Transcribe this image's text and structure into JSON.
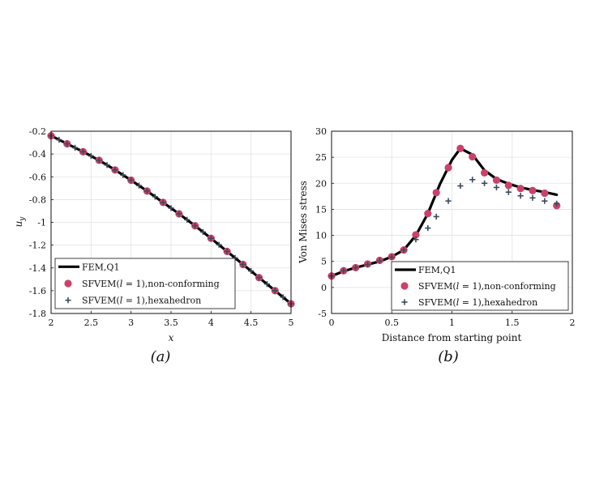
{
  "chart_data": [
    {
      "type": "line",
      "panel_label": "(a)",
      "xlabel": "x",
      "ylabel": "u",
      "ylabel_sub": "y",
      "xlim": [
        2,
        5
      ],
      "ylim": [
        -1.8,
        -0.2
      ],
      "xticks": [
        "2",
        "2.5",
        "3",
        "3.5",
        "4",
        "4.5",
        "5"
      ],
      "yticks": [
        "-0.2",
        "-0.4",
        "-0.6",
        "-0.8",
        "-1",
        "-1.2",
        "-1.4",
        "-1.6",
        "-1.8"
      ],
      "legend_position": "bottom-left",
      "series": [
        {
          "name": "FEM,Q1",
          "style": "line",
          "color": "#000000",
          "x": [
            2.0,
            2.2,
            2.4,
            2.6,
            2.8,
            3.0,
            3.2,
            3.4,
            3.6,
            3.8,
            4.0,
            4.2,
            4.4,
            4.6,
            4.8,
            5.0
          ],
          "y": [
            -0.24,
            -0.31,
            -0.38,
            -0.455,
            -0.54,
            -0.63,
            -0.725,
            -0.825,
            -0.925,
            -1.03,
            -1.14,
            -1.255,
            -1.37,
            -1.485,
            -1.6,
            -1.715
          ]
        },
        {
          "name": "SFVEM(l = 1),non-conforming",
          "name_parts": [
            "SFVEM(",
            "l",
            " = 1),non-conforming"
          ],
          "style": "circle",
          "color": "#c9426a",
          "x": [
            2.0,
            2.2,
            2.4,
            2.6,
            2.8,
            3.0,
            3.2,
            3.4,
            3.6,
            3.8,
            4.0,
            4.2,
            4.4,
            4.6,
            4.8,
            5.0
          ],
          "y": [
            -0.24,
            -0.31,
            -0.38,
            -0.455,
            -0.54,
            -0.63,
            -0.725,
            -0.825,
            -0.925,
            -1.03,
            -1.14,
            -1.255,
            -1.37,
            -1.485,
            -1.6,
            -1.715
          ]
        },
        {
          "name": "SFVEM(l = 1),hexahedron",
          "name_parts": [
            "SFVEM(",
            "l",
            " = 1),hexahedron"
          ],
          "style": "plus",
          "color": "#3d4a5c",
          "x": [
            2.0,
            2.1,
            2.2,
            2.3,
            2.4,
            2.5,
            2.6,
            2.7,
            2.8,
            2.9,
            3.0,
            3.1,
            3.2,
            3.3,
            3.4,
            3.5,
            3.6,
            3.7,
            3.8,
            3.9,
            4.0,
            4.1,
            4.2,
            4.3,
            4.4,
            4.5,
            4.6,
            4.7,
            4.8,
            4.9,
            5.0
          ],
          "y": [
            -0.24,
            -0.275,
            -0.31,
            -0.345,
            -0.38,
            -0.417,
            -0.455,
            -0.497,
            -0.54,
            -0.585,
            -0.63,
            -0.677,
            -0.725,
            -0.775,
            -0.825,
            -0.875,
            -0.925,
            -0.977,
            -1.03,
            -1.085,
            -1.14,
            -1.197,
            -1.255,
            -1.312,
            -1.37,
            -1.427,
            -1.485,
            -1.542,
            -1.6,
            -1.657,
            -1.715
          ]
        }
      ]
    },
    {
      "type": "line",
      "panel_label": "(b)",
      "xlabel": "Distance from starting point",
      "ylabel": "Von Mises stress",
      "xlim": [
        0,
        2
      ],
      "ylim": [
        -5,
        30
      ],
      "xticks": [
        "0",
        "0.5",
        "1",
        "1.5",
        "2"
      ],
      "yticks": [
        "30",
        "25",
        "20",
        "15",
        "10",
        "5",
        "0",
        "-5"
      ],
      "legend_position": "bottom-right",
      "series": [
        {
          "name": "FEM,Q1",
          "style": "line",
          "color": "#000000",
          "x": [
            0.0,
            0.1,
            0.2,
            0.3,
            0.4,
            0.5,
            0.6,
            0.7,
            0.8,
            0.9,
            1.0,
            1.07,
            1.17,
            1.27,
            1.37,
            1.47,
            1.57,
            1.67,
            1.77,
            1.87
          ],
          "y": [
            2.2,
            3.1,
            3.8,
            4.4,
            5.0,
            5.9,
            7.2,
            10.0,
            14.2,
            19.8,
            24.5,
            26.7,
            25.5,
            22.5,
            20.8,
            19.9,
            19.2,
            18.7,
            18.3,
            17.8
          ]
        },
        {
          "name": "SFVEM(l = 1),non-conforming",
          "name_parts": [
            "SFVEM(",
            "l",
            " = 1),non-conforming"
          ],
          "style": "circle",
          "color": "#c9426a",
          "x": [
            0.0,
            0.1,
            0.2,
            0.3,
            0.4,
            0.5,
            0.6,
            0.7,
            0.8,
            0.87,
            0.97,
            1.07,
            1.17,
            1.27,
            1.37,
            1.47,
            1.57,
            1.67,
            1.77,
            1.87
          ],
          "y": [
            2.2,
            3.2,
            3.8,
            4.5,
            5.2,
            5.9,
            7.2,
            10.1,
            14.2,
            18.2,
            23.0,
            26.7,
            25.1,
            22.0,
            20.6,
            19.6,
            19.0,
            18.6,
            18.1,
            15.7
          ]
        },
        {
          "name": "SFVEM(l = 1),hexahedron",
          "name_parts": [
            "SFVEM(",
            "l",
            " = 1),hexahedron"
          ],
          "style": "plus",
          "color": "#3d4a5c",
          "x": [
            0.0,
            0.1,
            0.2,
            0.3,
            0.4,
            0.5,
            0.6,
            0.7,
            0.8,
            0.87,
            0.97,
            1.07,
            1.17,
            1.27,
            1.37,
            1.47,
            1.57,
            1.67,
            1.77,
            1.87
          ],
          "y": [
            2.2,
            3.2,
            3.8,
            4.4,
            5.1,
            5.8,
            7.2,
            9.2,
            11.4,
            13.6,
            16.6,
            19.5,
            20.7,
            20.0,
            19.2,
            18.3,
            17.6,
            17.2,
            16.6,
            16.1
          ]
        }
      ]
    }
  ]
}
